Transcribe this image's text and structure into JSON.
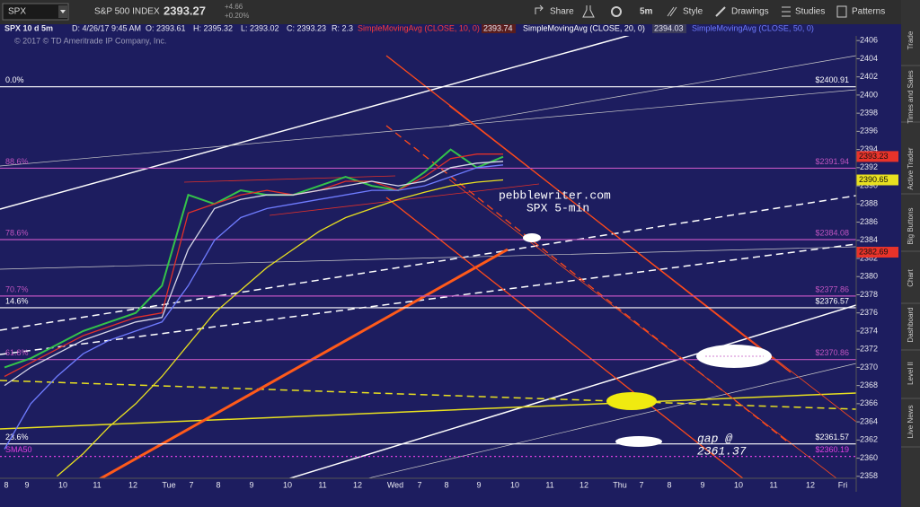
{
  "toolbar": {
    "symbol": "SPX",
    "description": "S&P 500 INDEX",
    "last": "2393.27",
    "change": "+4.66",
    "change_pct": "+0.20%",
    "buttons": [
      "Share",
      "5m",
      "Style",
      "Drawings",
      "Studies",
      "Patterns"
    ]
  },
  "header": {
    "title": "SPX 10 d 5m",
    "fields": [
      "D: 4/26/17 9:45 AM",
      "O: 2393.61",
      "H: 2395.32",
      "L: 2393.02",
      "C: 2393.23",
      "R: 2.3"
    ],
    "studies": [
      {
        "name": "SimpleMovingAvg (CLOSE, 10, 0)",
        "value": "2393.74",
        "color": "#ff3b3b"
      },
      {
        "name": "SimpleMovingAvg (CLOSE, 20, 0)",
        "value": "2394.03",
        "color": "#ffffff"
      },
      {
        "name": "SimpleMovingAvg (CLOSE, 50, 0)",
        "color": "#6f7cff"
      }
    ],
    "copyright": "© 2017 © TD Ameritrade IP Company, Inc."
  },
  "chart_data": {
    "type": "line",
    "ylim": [
      2356.3,
      2407.8
    ],
    "yticks": [
      2358,
      2360,
      2362,
      2364,
      2366,
      2368,
      2370,
      2372,
      2374,
      2376,
      2378,
      2380,
      2382,
      2384,
      2386,
      2388,
      2390,
      2392,
      2394,
      2396,
      2398,
      2400,
      2402,
      2404,
      2406
    ],
    "x_labels": [
      "8",
      "9",
      "10",
      "11",
      "12",
      "Tue",
      "7",
      "8",
      "9",
      "10",
      "11",
      "12",
      "Wed",
      "7",
      "8",
      "9",
      "10",
      "11",
      "12",
      "Thu",
      "7",
      "8",
      "9",
      "10",
      "11",
      "12",
      "Fri"
    ],
    "series": [
      {
        "name": "SPX",
        "color": "#34c34a",
        "values": [
          2370,
          2371,
          2372.5,
          2374,
          2375,
          2376,
          2379,
          2389,
          2388,
          2389.5,
          2389,
          2389,
          2390,
          2391,
          2390,
          2389.5,
          2391.5,
          2394,
          2392,
          2393.2
        ]
      },
      {
        "name": "SimpleMovingAvg (CLOSE, 10, 0)",
        "color": "#e0302a",
        "values": [
          2369,
          2370.5,
          2372,
          2373.5,
          2374.5,
          2375.5,
          2376,
          2387,
          2388,
          2389,
          2389.5,
          2389,
          2389.5,
          2390.5,
          2390.5,
          2389.5,
          2391,
          2393,
          2393.5,
          2393.5
        ]
      },
      {
        "name": "SimpleMovingAvg (CLOSE, 20, 0)",
        "color": "#d8d8e8",
        "values": [
          2368,
          2370,
          2371.5,
          2373,
          2374,
          2375,
          2375.5,
          2383,
          2387.5,
          2388.5,
          2389,
          2389,
          2389.5,
          2390,
          2390.5,
          2390,
          2390.5,
          2392,
          2392.5,
          2392.7
        ]
      },
      {
        "name": "SimpleMovingAvg (CLOSE, 50, 0)",
        "color": "#6f7cff",
        "values": [
          2361,
          2366,
          2369,
          2371.5,
          2373,
          2374,
          2375,
          2379,
          2384,
          2386.5,
          2387.5,
          2388,
          2388.5,
          2389,
          2389.5,
          2389.5,
          2390,
          2391,
          2392,
          2392.3
        ]
      },
      {
        "name": "SMA",
        "color": "#e8e020",
        "values": [
          null,
          null,
          2358,
          2360.5,
          2363.5,
          2366,
          2369,
          2372.5,
          2376,
          2378.5,
          2381,
          2383,
          2385,
          2386.5,
          2387.5,
          2388.5,
          2389.3,
          2390,
          2390.4,
          2390.65
        ]
      }
    ],
    "levels": [
      {
        "label": "0.0%",
        "value": 2400.91,
        "value_label": "$2400.91",
        "color": "#ffffff"
      },
      {
        "label": "88.6%",
        "value": 2391.94,
        "value_label": "$2391.94",
        "color": "#c054c0"
      },
      {
        "label": "78.6%",
        "value": 2384.08,
        "value_label": "$2384.08",
        "color": "#c054c0"
      },
      {
        "label": "70.7%",
        "value": 2377.86,
        "value_label": "$2377.86",
        "color": "#c054c0"
      },
      {
        "label": "14.6%",
        "value": 2376.57,
        "value_label": "$2376.57",
        "color": "#ffffff"
      },
      {
        "label": "61.8%",
        "value": 2370.86,
        "value_label": "$2370.86",
        "color": "#c054c0"
      },
      {
        "label": "23.6%",
        "value": 2361.57,
        "value_label": "$2361.57",
        "color": "#ffffff"
      },
      {
        "label": "SMA50",
        "value": 2360.19,
        "value_label": "$2360.19",
        "color": "#e040e0",
        "dashed": true
      }
    ],
    "price_flags": [
      {
        "value": 2393.23,
        "color": "#e8332a"
      },
      {
        "value": 2390.65,
        "color": "#e8e020"
      },
      {
        "value": 2382.69,
        "color": "#e8332a"
      }
    ],
    "annotations": [
      "pebblewriter.com",
      "SPX 5-min",
      "gap @",
      "2361.37"
    ]
  },
  "side_tabs": [
    "Trade",
    "Times and Sales",
    "Active Trader",
    "Big Buttons",
    "Chart",
    "Dashboard",
    "Level II",
    "Live News"
  ]
}
